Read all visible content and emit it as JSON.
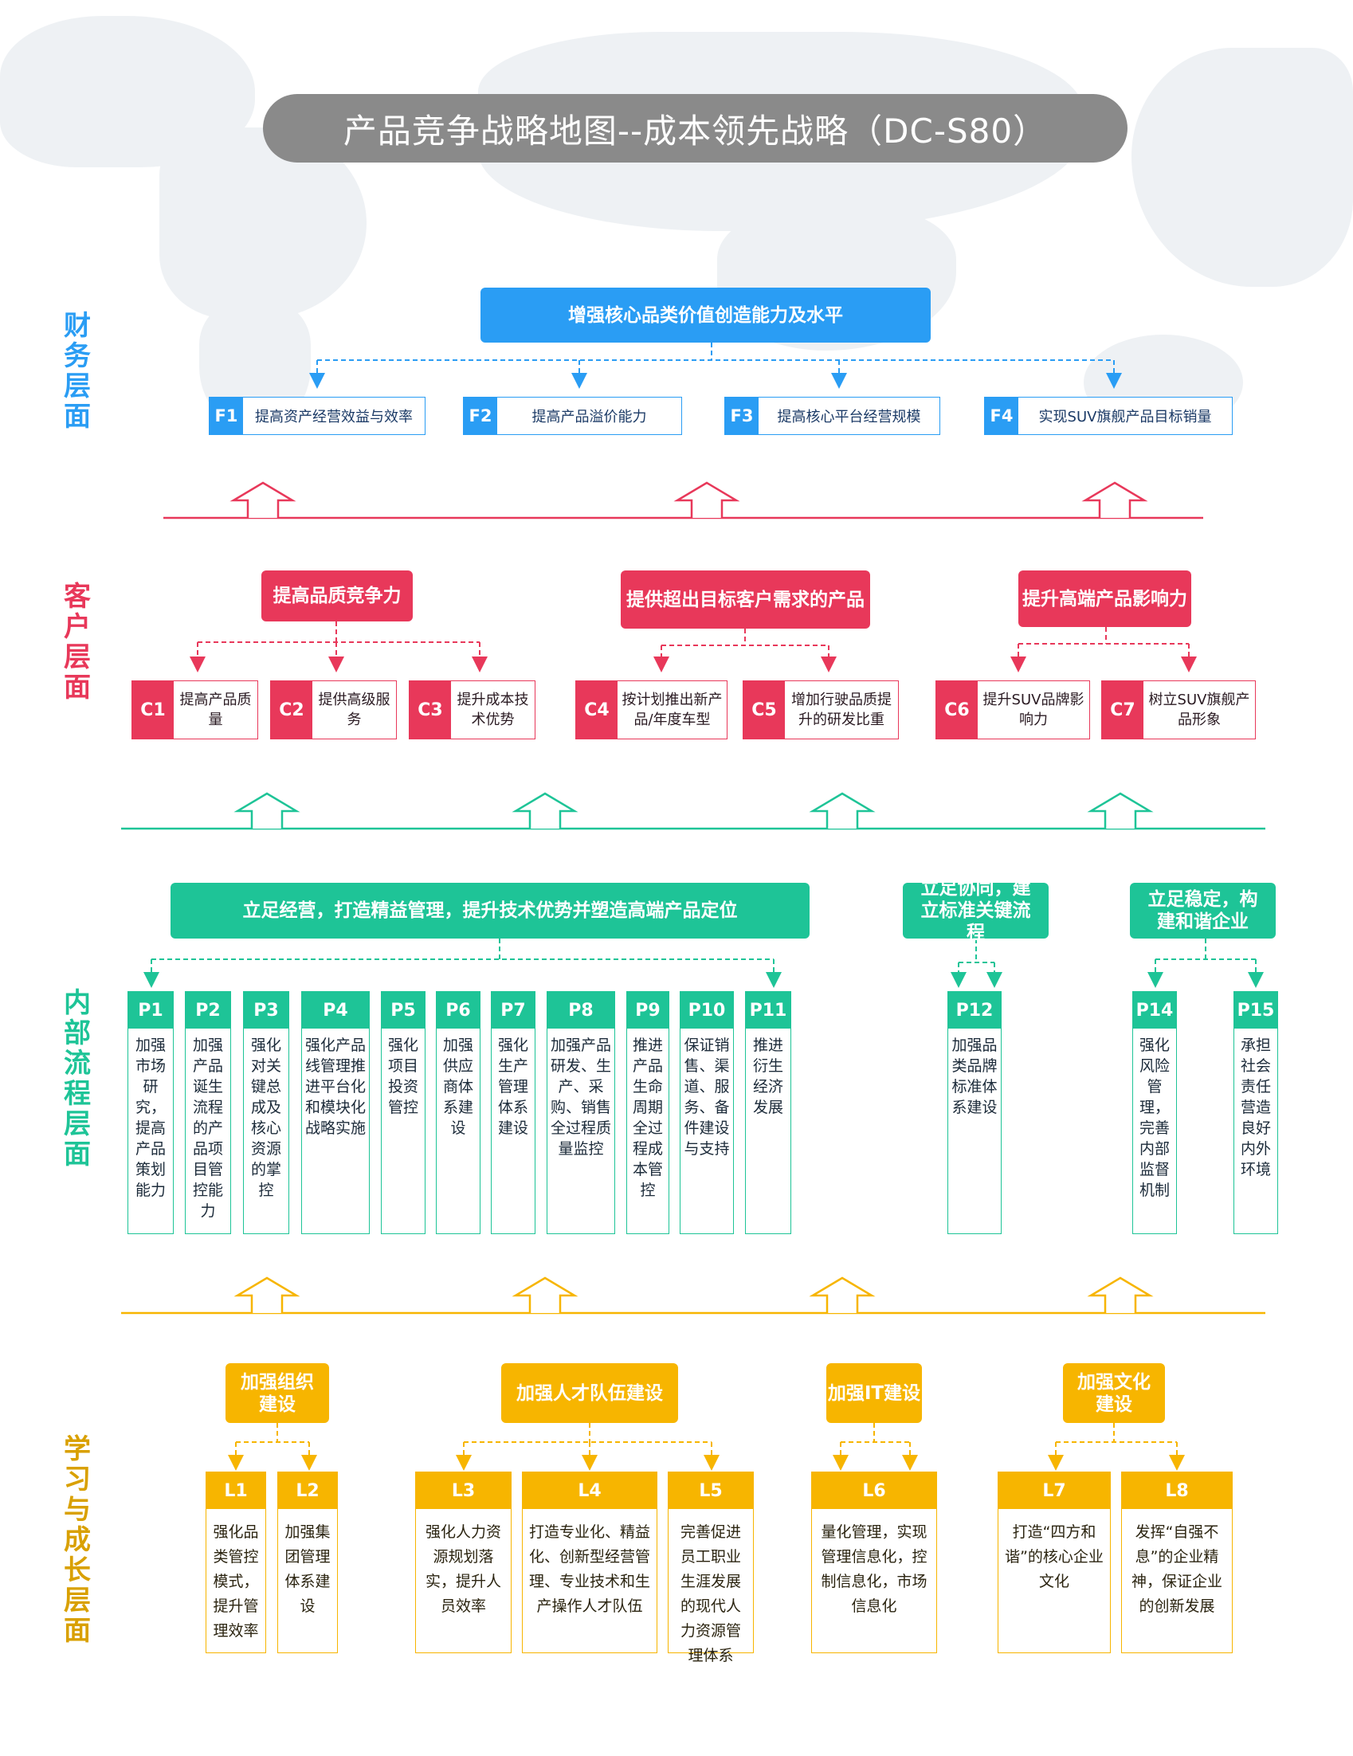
{
  "title": "产品竞争战略地图--成本领先战略（DC-S80）",
  "colors": {
    "finance": "#2a9df4",
    "customer": "#e8385a",
    "process": "#1ec497",
    "learning": "#f7b500",
    "title_bg": "#8a8a8a"
  },
  "layers": {
    "finance": "财务层面",
    "customer": "客户层面",
    "process": "内部流程层面",
    "learning": "学习与成长层面"
  },
  "finance": {
    "goal": "增强核心品类价值创造能力及水平",
    "items": [
      {
        "id": "F1",
        "text": "提高资产经营效益与效率"
      },
      {
        "id": "F2",
        "text": "提高产品溢价能力"
      },
      {
        "id": "F3",
        "text": "提高核心平台经营规模"
      },
      {
        "id": "F4",
        "text": "实现SUV旗舰产品目标销量"
      }
    ]
  },
  "customer": {
    "groups": [
      {
        "title": "提高品质竞争力"
      },
      {
        "title": "提供超出目标客户需求的产品"
      },
      {
        "title": "提升高端产品影响力"
      }
    ],
    "items": [
      {
        "id": "C1",
        "text": "提高产品质量"
      },
      {
        "id": "C2",
        "text": "提供高级服务"
      },
      {
        "id": "C3",
        "text": "提升成本技术优势"
      },
      {
        "id": "C4",
        "text": "按计划推出新产品/年度车型"
      },
      {
        "id": "C5",
        "text": "增加行驶品质提升的研发比重"
      },
      {
        "id": "C6",
        "text": "提升SUV品牌影响力"
      },
      {
        "id": "C7",
        "text": "树立SUV旗舰产品形象"
      }
    ]
  },
  "process": {
    "groups": [
      {
        "title": "立足经营，打造精益管理，提升技术优势并塑造高端产品定位"
      },
      {
        "title": "立足协同，建立标准关键流程"
      },
      {
        "title": "立足稳定，构建和谐企业"
      }
    ],
    "items": [
      {
        "id": "P1",
        "text": "加强市场研究，提高产品策划能力"
      },
      {
        "id": "P2",
        "text": "加强产品诞生流程的产品项目管控能力"
      },
      {
        "id": "P3",
        "text": "强化对关键总成及核心资源的掌控"
      },
      {
        "id": "P4",
        "text": "强化产品线管理推进平台化和模块化战略实施"
      },
      {
        "id": "P5",
        "text": "强化项目投资管控"
      },
      {
        "id": "P6",
        "text": "加强供应商体系建设"
      },
      {
        "id": "P7",
        "text": "强化生产管理体系建设"
      },
      {
        "id": "P8",
        "text": "加强产品研发、生产、采购、销售全过程质量监控"
      },
      {
        "id": "P9",
        "text": "推进产品生命周期全过程成本管控"
      },
      {
        "id": "P10",
        "text": "保证销售、渠道、服务、备件建设与支持"
      },
      {
        "id": "P11",
        "text": "推进衍生经济发展"
      },
      {
        "id": "P12",
        "text": "加强品类品牌标准体系建设"
      },
      {
        "id": "P14",
        "text": "强化风险管理，完善内部监督机制"
      },
      {
        "id": "P15",
        "text": "承担社会责任营造良好内外环境"
      }
    ]
  },
  "learning": {
    "groups": [
      {
        "title": "加强组织建设"
      },
      {
        "title": "加强人才队伍建设"
      },
      {
        "title": "加强IT建设"
      },
      {
        "title": "加强文化建设"
      }
    ],
    "items": [
      {
        "id": "L1",
        "text": "强化品类管控模式，提升管理效率"
      },
      {
        "id": "L2",
        "text": "加强集团管理体系建设"
      },
      {
        "id": "L3",
        "text": "强化人力资源规划落实，提升人员效率"
      },
      {
        "id": "L4",
        "text": "打造专业化、精益化、创新型经营管理、专业技术和生产操作人才队伍"
      },
      {
        "id": "L5",
        "text": "完善促进员工职业生涯发展的现代人力资源管理体系"
      },
      {
        "id": "L6",
        "text": "量化管理，实现管理信息化，控制信息化，市场信息化"
      },
      {
        "id": "L7",
        "text": "打造“四方和谐”的核心企业文化"
      },
      {
        "id": "L8",
        "text": "发挥“自强不息”的企业精神，保证企业的创新发展"
      }
    ]
  }
}
